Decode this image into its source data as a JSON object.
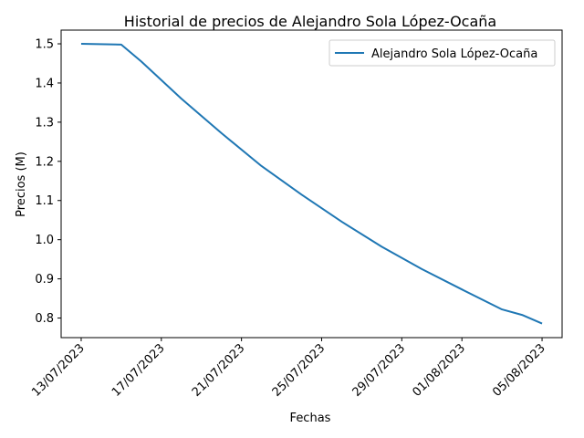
{
  "chart_data": {
    "type": "line",
    "title": "Historial de precios de Alejandro Sola López-Ocaña",
    "xlabel": "Fechas",
    "ylabel": "Precios (M)",
    "x_tick_labels": [
      "13/07/2023",
      "17/07/2023",
      "21/07/2023",
      "25/07/2023",
      "29/07/2023",
      "01/08/2023",
      "05/08/2023"
    ],
    "y_tick_labels": [
      "0.8",
      "0.9",
      "1.0",
      "1.1",
      "1.2",
      "1.3",
      "1.4",
      "1.5"
    ],
    "xlim": [
      "2023-07-12",
      "2023-08-06"
    ],
    "ylim": [
      0.75,
      1.535
    ],
    "grid": false,
    "legend_position": "top-right",
    "series": [
      {
        "name": "Alejandro Sola López-Ocaña",
        "color": "#1f77b4",
        "points": [
          {
            "x": "2023-07-13",
            "y": 1.5
          },
          {
            "x": "2023-07-15",
            "y": 1.498
          },
          {
            "x": "2023-07-16",
            "y": 1.455
          },
          {
            "x": "2023-07-18",
            "y": 1.36
          },
          {
            "x": "2023-07-20",
            "y": 1.272
          },
          {
            "x": "2023-07-22",
            "y": 1.188
          },
          {
            "x": "2023-07-24",
            "y": 1.115
          },
          {
            "x": "2023-07-26",
            "y": 1.046
          },
          {
            "x": "2023-07-28",
            "y": 0.982
          },
          {
            "x": "2023-07-30",
            "y": 0.925
          },
          {
            "x": "2023-08-01",
            "y": 0.873
          },
          {
            "x": "2023-08-03",
            "y": 0.822
          },
          {
            "x": "2023-08-04",
            "y": 0.808
          },
          {
            "x": "2023-08-05",
            "y": 0.786
          }
        ]
      }
    ]
  }
}
